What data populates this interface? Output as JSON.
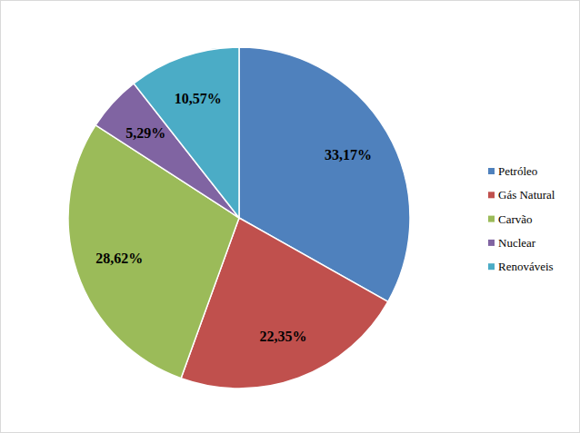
{
  "chart_data": {
    "type": "pie",
    "categories": [
      "Petróleo",
      "Gás Natural",
      "Carvão",
      "Nuclear",
      "Renováveis"
    ],
    "values": [
      33.17,
      22.35,
      28.62,
      5.29,
      10.57
    ],
    "value_labels": [
      "33,17%",
      "22,35%",
      "28,62%",
      "5,29%",
      "10,57%"
    ],
    "colors": [
      "#4f81bd",
      "#c0504d",
      "#9bbb59",
      "#8064a2",
      "#4bacc6"
    ],
    "data_labels": true,
    "legend": "right"
  }
}
